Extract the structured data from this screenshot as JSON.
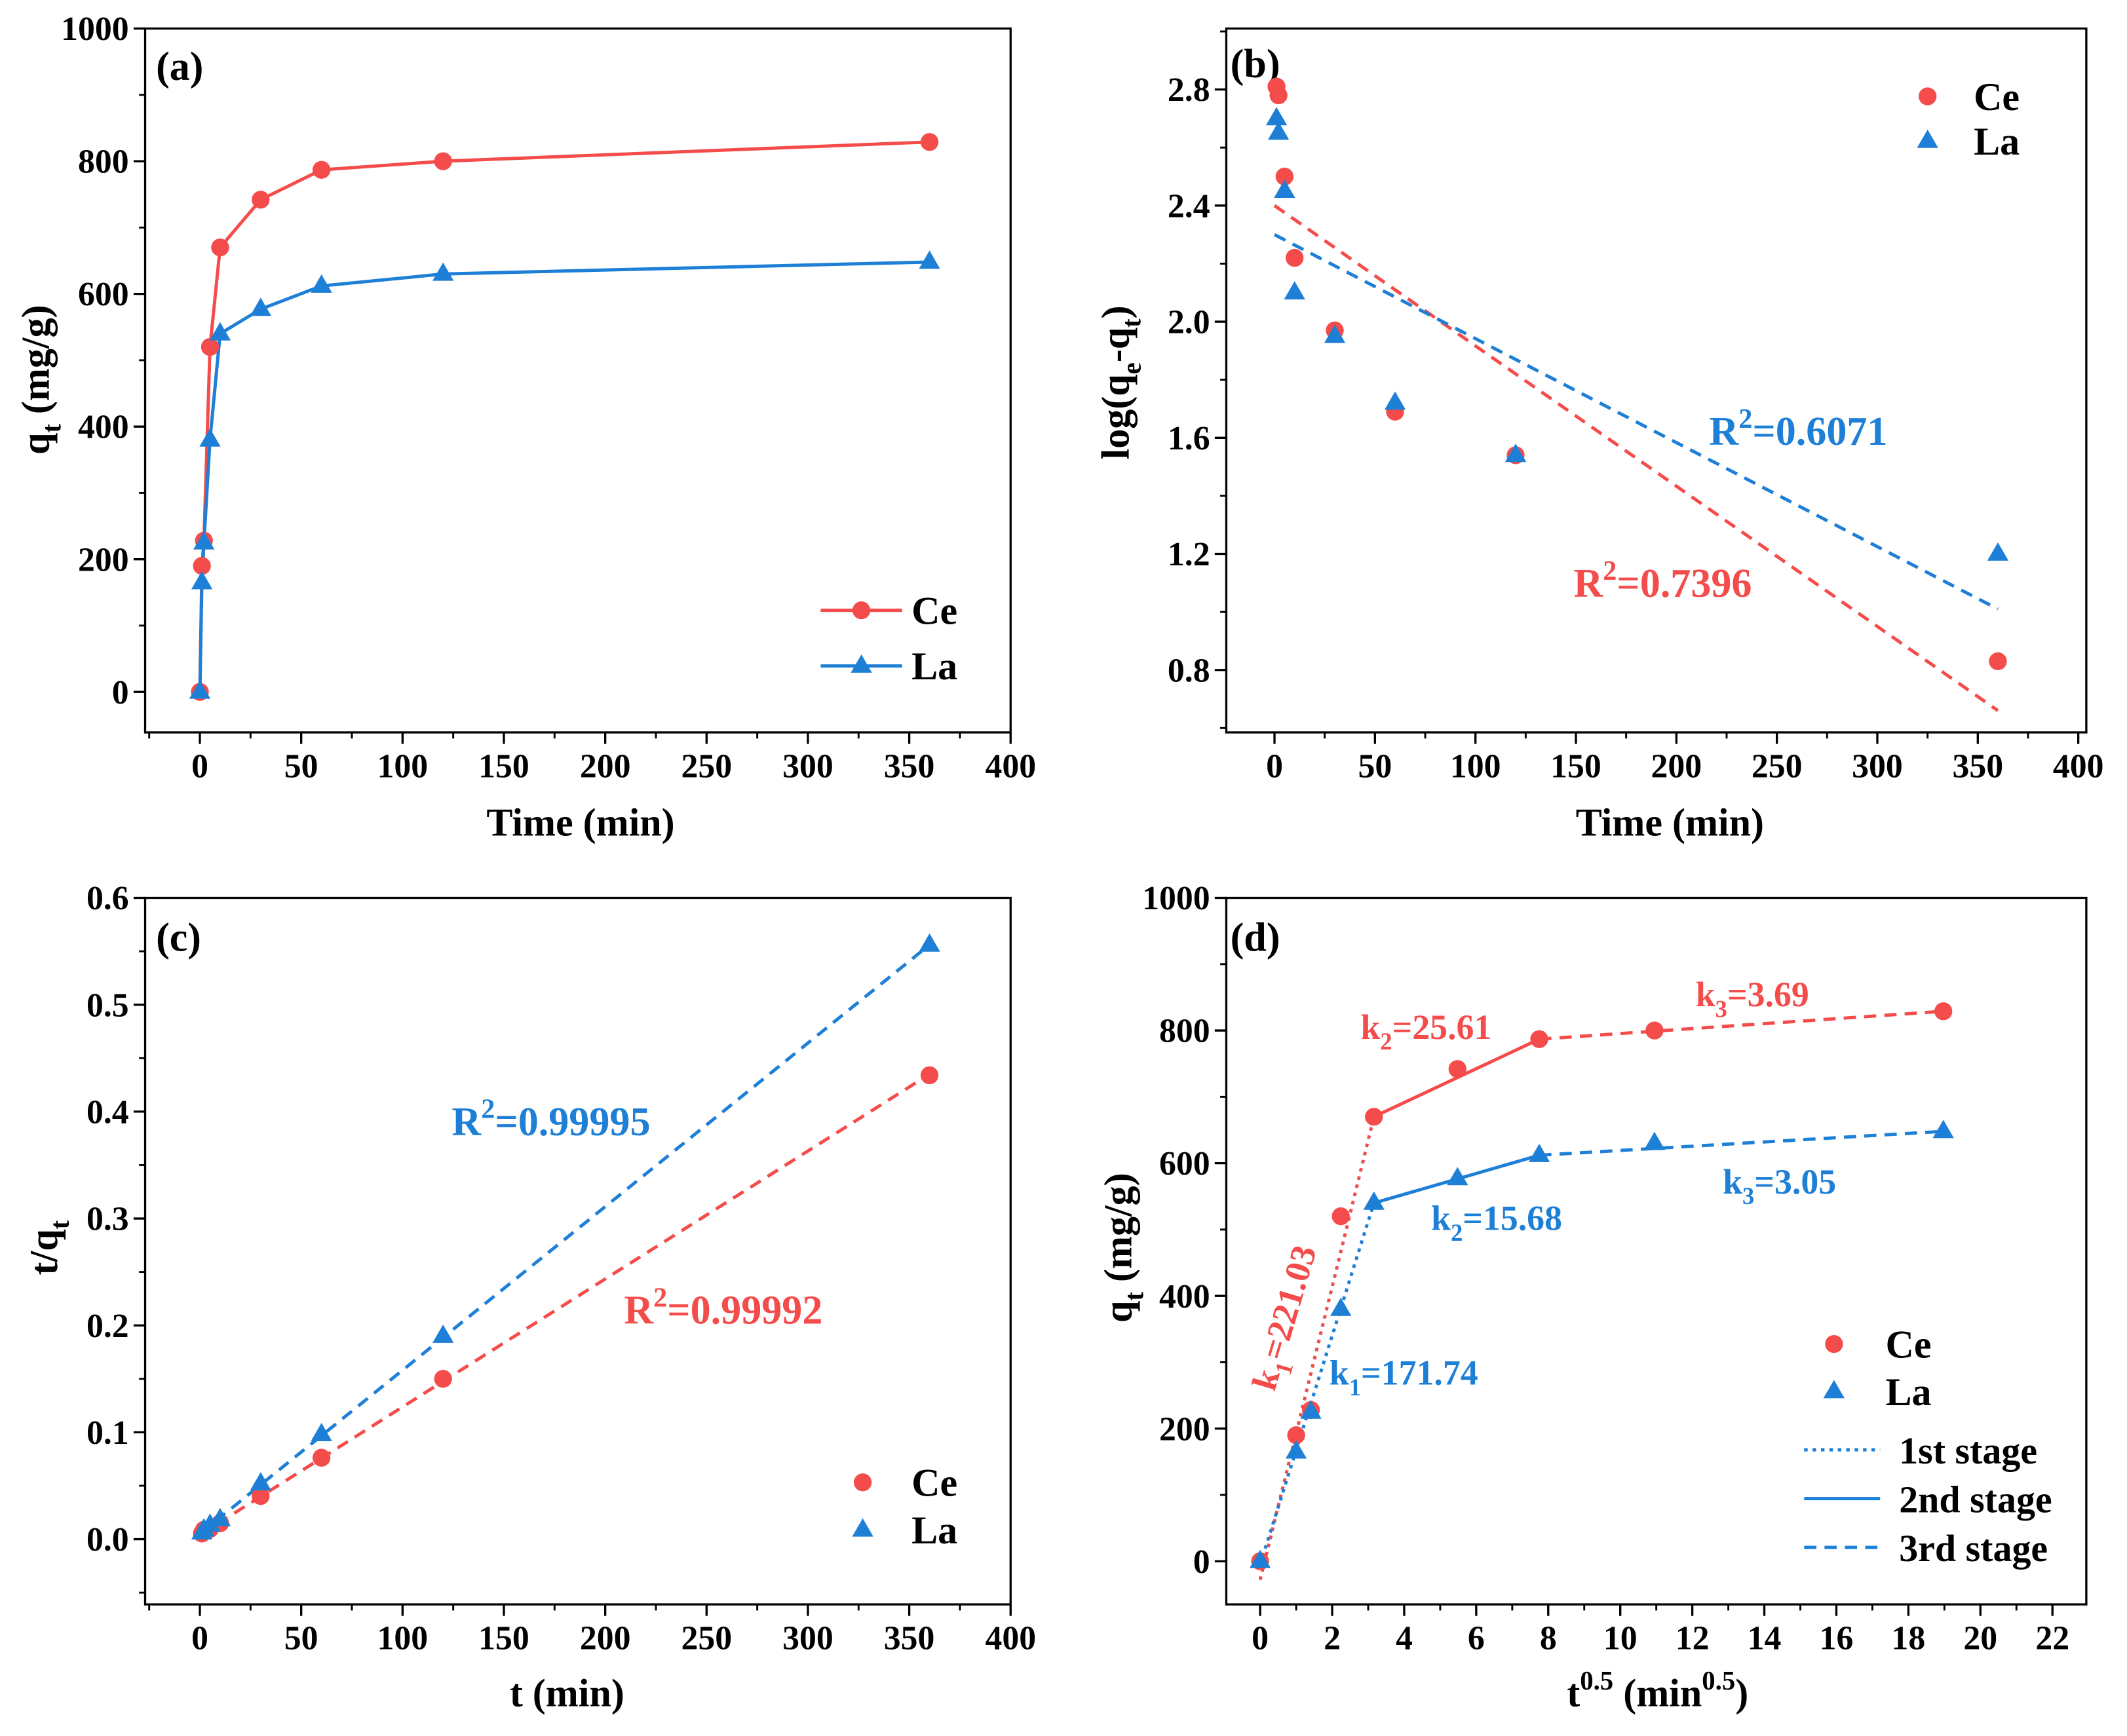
{
  "chart_data": [
    {
      "panel_label": "(a)",
      "type": "line",
      "xlabel": [
        {
          "text": "Time (min)"
        }
      ],
      "ylabel": [
        {
          "text": "q"
        },
        {
          "text": "t",
          "sub": true
        },
        {
          "text": " (mg/g)"
        }
      ],
      "xlim": [
        -27,
        400
      ],
      "ylim": [
        -61,
        1000
      ],
      "xticks": [
        "0",
        "50",
        "100",
        "150",
        "200",
        "250",
        "300",
        "350",
        "400"
      ],
      "yticks": [
        "0",
        "200",
        "400",
        "600",
        "800",
        "1000"
      ],
      "series": [
        {
          "name": "Ce",
          "color": "#f44b4b",
          "marker": "circle",
          "connect": true,
          "x": [
            0,
            1,
            2,
            5,
            10,
            30,
            60,
            120,
            360
          ],
          "y": [
            0,
            190,
            228,
            520,
            670,
            742,
            787,
            800,
            829
          ]
        },
        {
          "name": "La",
          "color": "#1d7fd6",
          "marker": "triangle",
          "connect": true,
          "x": [
            0,
            1,
            2,
            5,
            10,
            30,
            60,
            120,
            360
          ],
          "y": [
            0,
            165,
            225,
            380,
            540,
            577,
            612,
            630,
            648
          ]
        }
      ],
      "fits": [],
      "legend": {
        "position": "bottom-right"
      },
      "annotations": []
    },
    {
      "panel_label": "(b)",
      "type": "scatter",
      "xlabel": [
        {
          "text": "Time (min)"
        }
      ],
      "ylabel": [
        {
          "text": "log(q"
        },
        {
          "text": "e",
          "sub": true
        },
        {
          "text": "-q"
        },
        {
          "text": "t",
          "sub": true
        },
        {
          "text": ")"
        }
      ],
      "xlim": [
        -24,
        404
      ],
      "ylim": [
        0.585,
        3.01
      ],
      "xticks": [
        "0",
        "50",
        "100",
        "150",
        "200",
        "250",
        "300",
        "350",
        "400"
      ],
      "yticks": [
        "0.8",
        "1.2",
        "1.6",
        "2.0",
        "2.4",
        "2.8"
      ],
      "series": [
        {
          "name": "Ce",
          "color": "#f44b4b",
          "marker": "circle",
          "connect": false,
          "x": [
            1,
            2,
            5,
            10,
            30,
            60,
            120,
            360
          ],
          "y": [
            2.81,
            2.78,
            2.5,
            2.22,
            1.97,
            1.69,
            1.54,
            0.83
          ]
        },
        {
          "name": "La",
          "color": "#1d7fd6",
          "marker": "triangle",
          "connect": false,
          "x": [
            1,
            2,
            5,
            10,
            30,
            60,
            120,
            360
          ],
          "y": [
            2.7,
            2.65,
            2.45,
            2.1,
            1.95,
            1.72,
            1.54,
            1.2
          ]
        }
      ],
      "fits": [
        {
          "series": 0,
          "line": "dashed",
          "x": [
            0,
            360
          ],
          "y": [
            2.4,
            0.66
          ]
        },
        {
          "series": 1,
          "line": "dashed",
          "x": [
            0,
            360
          ],
          "y": [
            2.3,
            1.01
          ]
        }
      ],
      "legend": {
        "position": "top-right"
      },
      "annotations": [
        {
          "color": "#1d7fd6",
          "segments": [
            {
              "text": "R"
            },
            {
              "text": "2",
              "sup": true
            },
            {
              "text": "=0.6071"
            }
          ]
        },
        {
          "color": "#f44b4b",
          "segments": [
            {
              "text": "R"
            },
            {
              "text": "2",
              "sup": true
            },
            {
              "text": "=0.7396"
            }
          ]
        }
      ]
    },
    {
      "panel_label": "(c)",
      "type": "scatter",
      "xlabel": [
        {
          "text": "t (min)"
        }
      ],
      "ylabel": [
        {
          "text": "t/q"
        },
        {
          "text": "t",
          "sub": true
        }
      ],
      "xlim": [
        -27,
        400
      ],
      "ylim": [
        -0.061,
        0.6
      ],
      "xticks": [
        "0",
        "50",
        "100",
        "150",
        "200",
        "250",
        "300",
        "350",
        "400"
      ],
      "yticks": [
        "0.0",
        "0.1",
        "0.2",
        "0.3",
        "0.4",
        "0.5",
        "0.6"
      ],
      "series": [
        {
          "name": "Ce",
          "color": "#f44b4b",
          "marker": "circle",
          "connect": false,
          "x": [
            1,
            2,
            5,
            10,
            30,
            60,
            120,
            360
          ],
          "y": [
            0.0053,
            0.0088,
            0.0096,
            0.0149,
            0.0404,
            0.0762,
            0.15,
            0.434
          ]
        },
        {
          "name": "La",
          "color": "#1d7fd6",
          "marker": "triangle",
          "connect": false,
          "x": [
            1,
            2,
            5,
            10,
            30,
            60,
            120,
            360
          ],
          "y": [
            0.0061,
            0.0089,
            0.0132,
            0.0185,
            0.052,
            0.098,
            0.19,
            0.556
          ]
        }
      ],
      "fits": [
        {
          "series": 1,
          "line": "dashed",
          "x": [
            0,
            360
          ],
          "y": [
            0.005,
            0.556
          ]
        },
        {
          "series": 0,
          "line": "dashed",
          "x": [
            0,
            360
          ],
          "y": [
            0.004,
            0.435
          ]
        }
      ],
      "legend": {
        "position": "bottom-right"
      },
      "annotations": [
        {
          "color": "#1d7fd6",
          "segments": [
            {
              "text": "R"
            },
            {
              "text": "2",
              "sup": true
            },
            {
              "text": "=0.99995"
            }
          ]
        },
        {
          "color": "#f44b4b",
          "segments": [
            {
              "text": "R"
            },
            {
              "text": "2",
              "sup": true
            },
            {
              "text": "=0.99992"
            }
          ]
        }
      ]
    },
    {
      "panel_label": "(d)",
      "type": "scatter",
      "xlabel": [
        {
          "text": "t"
        },
        {
          "text": "0.5",
          "sup": true
        },
        {
          "text": " (min"
        },
        {
          "text": "0.5",
          "sup": true
        },
        {
          "text": ")"
        }
      ],
      "ylabel": [
        {
          "text": "q"
        },
        {
          "text": "t",
          "sub": true
        },
        {
          "text": " (mg/g)"
        }
      ],
      "xlim": [
        -0.94,
        22.94
      ],
      "ylim": [
        -65,
        1000
      ],
      "xticks": [
        "0",
        "2",
        "4",
        "6",
        "8",
        "10",
        "12",
        "14",
        "16",
        "18",
        "20",
        "22"
      ],
      "yticks": [
        "0",
        "200",
        "400",
        "600",
        "800",
        "1000"
      ],
      "series": [
        {
          "name": "Ce",
          "color": "#f44b4b",
          "marker": "circle",
          "connect": false,
          "x": [
            0,
            1,
            1.41,
            2.24,
            3.16,
            5.48,
            7.75,
            10.95,
            18.97
          ],
          "y": [
            0,
            190,
            228,
            520,
            670,
            742,
            787,
            800,
            829
          ]
        },
        {
          "name": "La",
          "color": "#1d7fd6",
          "marker": "triangle",
          "connect": false,
          "x": [
            0,
            1,
            1.41,
            2.24,
            3.16,
            5.48,
            7.75,
            10.95,
            18.97
          ],
          "y": [
            0,
            165,
            225,
            380,
            540,
            577,
            612,
            630,
            648
          ]
        }
      ],
      "stages": [
        {
          "label": "1st stage",
          "line": "dotted",
          "color": "#1d7fd6"
        },
        {
          "label": "2nd stage",
          "line": "solid",
          "color": "#1d7fd6"
        },
        {
          "label": "3rd stage",
          "line": "dashed",
          "color": "#1d7fd6"
        }
      ],
      "fits": [
        {
          "series": 0,
          "stage": 0,
          "x": [
            0,
            3.16
          ],
          "y": [
            -28,
            670
          ]
        },
        {
          "series": 0,
          "stage": 1,
          "x": [
            3.16,
            7.75
          ],
          "y": [
            670,
            787
          ]
        },
        {
          "series": 0,
          "stage": 2,
          "x": [
            7.75,
            18.97
          ],
          "y": [
            787,
            829
          ]
        },
        {
          "series": 1,
          "stage": 0,
          "x": [
            0,
            3.16
          ],
          "y": [
            -5,
            540
          ]
        },
        {
          "series": 1,
          "stage": 1,
          "x": [
            3.16,
            7.75
          ],
          "y": [
            540,
            612
          ]
        },
        {
          "series": 1,
          "stage": 2,
          "x": [
            7.75,
            18.97
          ],
          "y": [
            612,
            648
          ]
        }
      ],
      "legend": {
        "position": "bottom-right"
      },
      "annotations": [
        {
          "color": "#f44b4b",
          "segments": [
            {
              "text": "k"
            },
            {
              "text": "2",
              "sub": true
            },
            {
              "text": "=25.61"
            }
          ]
        },
        {
          "color": "#f44b4b",
          "segments": [
            {
              "text": "k"
            },
            {
              "text": "3",
              "sub": true
            },
            {
              "text": "=3.69"
            }
          ]
        },
        {
          "color": "#1d7fd6",
          "segments": [
            {
              "text": "k"
            },
            {
              "text": "3",
              "sub": true
            },
            {
              "text": "=3.05"
            }
          ]
        },
        {
          "color": "#1d7fd6",
          "segments": [
            {
              "text": "k"
            },
            {
              "text": "2",
              "sub": true
            },
            {
              "text": "=15.68"
            }
          ]
        },
        {
          "color": "#1d7fd6",
          "segments": [
            {
              "text": "k"
            },
            {
              "text": "1",
              "sub": true
            },
            {
              "text": "=171.74"
            }
          ]
        },
        {
          "color": "#f44b4b",
          "segments": [
            {
              "text": "k"
            },
            {
              "text": "1",
              "sub": true
            },
            {
              "text": "=221.03"
            }
          ]
        }
      ]
    }
  ]
}
